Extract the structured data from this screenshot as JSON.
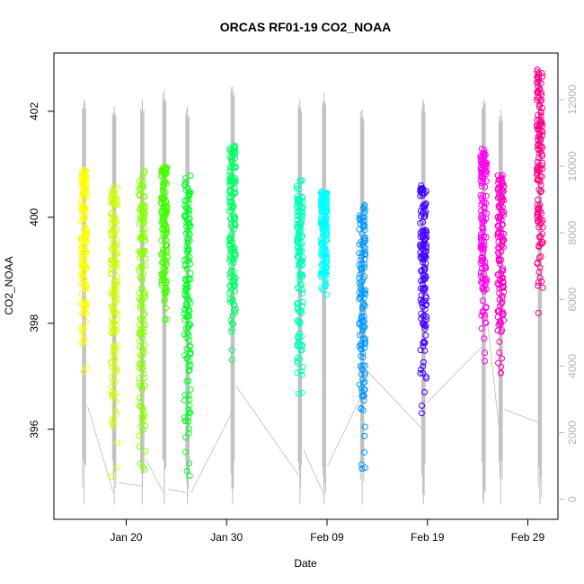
{
  "chart_data": {
    "type": "scatter",
    "title": "ORCAS RF01-19 CO2_NOAA",
    "xlabel": "Date",
    "ylabel": "CO2_NOAA",
    "x_ticks": [
      "Jan 20",
      "Jan 30",
      "Feb 09",
      "Feb 19",
      "Feb 29"
    ],
    "x_tick_days": [
      20,
      30,
      40,
      50,
      60
    ],
    "xlim_days": [
      12.8,
      63.0
    ],
    "ylim": [
      394.3,
      403.1
    ],
    "y_ticks": [
      396,
      398,
      400,
      402
    ],
    "y2_ticks": [
      0,
      2000,
      4000,
      6000,
      8000,
      10000,
      12000
    ],
    "y2lim": [
      -600,
      13400
    ],
    "day_reference": "Jan 0 = Dec 31",
    "flights": [
      {
        "day": 15.8,
        "color": "#ffff00",
        "y_range": [
          397.0,
          400.9
        ],
        "alt_max": 12000,
        "alt_end": 2800
      },
      {
        "day": 18.8,
        "color": "#ccff00",
        "y_range": [
          395.1,
          400.6
        ],
        "alt_max": 11800,
        "alt_end": 500
      },
      {
        "day": 21.6,
        "color": "#88ff00",
        "y_range": [
          394.7,
          401.0
        ],
        "alt_max": 12000,
        "alt_end": 1200
      },
      {
        "day": 23.8,
        "color": "#44ff00",
        "y_range": [
          397.9,
          401.0
        ],
        "alt_max": 12300,
        "alt_end": 300
      },
      {
        "day": 26.1,
        "color": "#00ff22",
        "y_range": [
          395.0,
          400.8
        ],
        "alt_max": 11800,
        "alt_end": 200
      },
      {
        "day": 30.6,
        "color": "#00ff66",
        "y_range": [
          397.2,
          401.4
        ],
        "alt_max": 12400,
        "alt_end": 3400
      },
      {
        "day": 37.3,
        "color": "#00ffbb",
        "y_range": [
          396.2,
          400.7
        ],
        "alt_max": 12000,
        "alt_end": 1500
      },
      {
        "day": 39.7,
        "color": "#00ffff",
        "y_range": [
          398.3,
          400.5
        ],
        "alt_max": 12200,
        "alt_end": 1000
      },
      {
        "day": 43.5,
        "color": "#0099ff",
        "y_range": [
          395.0,
          400.3
        ],
        "alt_max": 11700,
        "alt_end": 3900
      },
      {
        "day": 49.6,
        "color": "#4400ff",
        "y_range": [
          396.3,
          400.6
        ],
        "alt_max": 12000,
        "alt_end": 2900
      },
      {
        "day": 55.6,
        "color": "#ff00ee",
        "y_range": [
          397.2,
          401.3
        ],
        "alt_max": 12000,
        "alt_end": 5400
      },
      {
        "day": 57.3,
        "color": "#ff00cc",
        "y_range": [
          396.8,
          400.8
        ],
        "alt_max": 11700,
        "alt_end": 2700
      },
      {
        "day": 61.2,
        "color": "#ff0088",
        "y_range": [
          397.9,
          402.8
        ],
        "alt_max": 12400,
        "alt_end": 3100
      }
    ],
    "altitude_color": "#bebebe"
  }
}
